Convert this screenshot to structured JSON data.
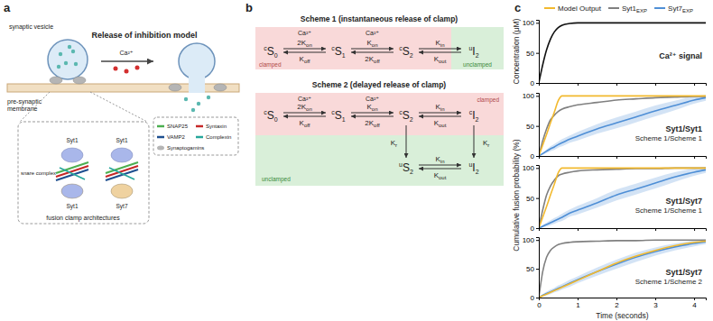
{
  "panel_labels": [
    "a",
    "b",
    "c"
  ],
  "panel_a": {
    "title": "Release of inhibition model",
    "vesicle_label": "synaptic vesicle",
    "membrane_label": [
      "pre-synaptic",
      "membrane"
    ],
    "ion": "Ca²⁺",
    "inset_labels": [
      "Syt1",
      "Syt1",
      "Syt1",
      "Syt7"
    ],
    "snare_label": "snare complex",
    "inset_caption": "fusion clamp architectures",
    "proteins": [
      {
        "label": "SNAP25",
        "color": "#4caf50"
      },
      {
        "label": "Syntaxin",
        "color": "#c62828"
      },
      {
        "label": "VAMP2",
        "color": "#1e4f8f"
      },
      {
        "label": "Complexin",
        "color": "#26a69a"
      },
      {
        "label": "Synaptogamins",
        "color": "#b5b5b5"
      }
    ]
  },
  "panel_b": {
    "schemes": [
      {
        "title": "Scheme 1 (instantaneous release of clamp)",
        "clamped_label": "clamped",
        "unclamped_label": "unclamped",
        "ion": "Ca²⁺",
        "states": [
          {
            "sup": "c",
            "base": "S",
            "sub": "0"
          },
          {
            "sup": "c",
            "base": "S",
            "sub": "1"
          },
          {
            "sup": "c",
            "base": "S",
            "sub": "2"
          },
          {
            "sup": "u",
            "base": "I",
            "sub": "2"
          }
        ],
        "forward_rates": [
          {
            "pre": "2",
            "base": "K",
            "sub": "on"
          },
          {
            "base": "K",
            "sub": "on"
          },
          {
            "base": "K",
            "sub": "in"
          }
        ],
        "backward_rates": [
          {
            "base": "K",
            "sub": "off"
          },
          {
            "pre": "2",
            "base": "K",
            "sub": "off"
          },
          {
            "base": "K",
            "sub": "out"
          }
        ]
      },
      {
        "title": "Scheme 2 (delayed release of clamp)",
        "clamped_label": "clamped",
        "unclamped_label": "unclamped",
        "ion": "Ca²⁺",
        "states": [
          {
            "sup": "c",
            "base": "S",
            "sub": "0"
          },
          {
            "sup": "c",
            "base": "S",
            "sub": "1"
          },
          {
            "sup": "c",
            "base": "S",
            "sub": "2"
          },
          {
            "sup": "c",
            "base": "I",
            "sub": "2"
          }
        ],
        "forward_rates": [
          {
            "pre": "2",
            "base": "K",
            "sub": "on"
          },
          {
            "base": "K",
            "sub": "on"
          },
          {
            "base": "K",
            "sub": "in"
          }
        ],
        "backward_rates": [
          {
            "base": "K",
            "sub": "off"
          },
          {
            "pre": "2",
            "base": "K",
            "sub": "off"
          },
          {
            "base": "K",
            "sub": "out"
          }
        ],
        "unclamped_states": [
          {
            "sup": "u",
            "base": "S",
            "sub": "2"
          },
          {
            "sup": "u",
            "base": "I",
            "sub": "2"
          }
        ],
        "unclamped_forward": [
          {
            "base": "K",
            "sub": "in"
          }
        ],
        "unclamped_backward": [
          {
            "base": "K",
            "sub": "out"
          }
        ],
        "vertical_rates": [
          {
            "base": "K",
            "sub": "r"
          },
          {
            "base": "K",
            "sub": "r"
          }
        ]
      }
    ]
  },
  "chart_data": [
    {
      "type": "line",
      "title": "Ca²⁺ signal",
      "ylabel": "Concentration (μM)",
      "x": [
        0,
        0.1,
        0.2,
        0.3,
        0.4,
        0.5,
        0.6,
        0.8,
        1,
        1.5,
        2,
        2.5,
        3,
        3.5,
        4,
        4.3
      ],
      "series": [
        {
          "color": "#111111",
          "values": [
            0,
            30,
            55,
            73,
            85,
            92,
            96,
            99,
            100,
            100,
            100,
            100,
            100,
            100,
            100,
            100
          ]
        }
      ],
      "xlim": [
        0,
        4.3
      ],
      "xticks": [
        0,
        1,
        2,
        3,
        4
      ],
      "ylim": [
        0,
        105
      ],
      "yticks": [
        0,
        50,
        100
      ],
      "tick_labels": "y"
    },
    {
      "type": "line",
      "title": "Syt1/Syt1",
      "subtitle": "Scheme 1/Scheme 1",
      "legend": "top",
      "x": [
        0,
        0.1,
        0.2,
        0.3,
        0.4,
        0.5,
        0.6,
        0.8,
        1,
        1.5,
        2,
        2.5,
        3,
        3.5,
        4,
        4.3
      ],
      "series": [
        {
          "name": "Model Output",
          "color": "#f2b92e",
          "values": [
            0,
            18,
            36,
            55,
            73,
            92,
            100,
            100,
            100,
            100,
            100,
            100,
            100,
            100,
            100,
            100
          ]
        },
        {
          "name": "Syt1EXP",
          "color": "#808080",
          "values": [
            0,
            25,
            45,
            60,
            68,
            74,
            78,
            82,
            85,
            89,
            93,
            95,
            97,
            98,
            99,
            99
          ]
        },
        {
          "name": "Syt7EXP",
          "color": "#4f8fd6",
          "values": [
            0,
            4,
            8,
            12,
            15,
            19,
            22,
            28,
            33,
            45,
            55,
            65,
            75,
            84,
            93,
            97
          ],
          "error": [
            0,
            2,
            3,
            4,
            5,
            5,
            6,
            6,
            7,
            8,
            9,
            9,
            9,
            8,
            6,
            5
          ]
        }
      ],
      "xlim": [
        0,
        4.3
      ],
      "xticks": [
        0,
        1,
        2,
        3,
        4
      ],
      "ylim": [
        0,
        105
      ],
      "yticks": [
        0,
        50,
        100
      ],
      "tick_labels": "y"
    },
    {
      "type": "line",
      "title": "Syt1/Syt7",
      "subtitle": "Scheme 1/Scheme 1",
      "ylabel": "Cumulative fusion probability (%)",
      "x": [
        0,
        0.1,
        0.2,
        0.3,
        0.4,
        0.5,
        0.6,
        0.8,
        1,
        1.5,
        2,
        2.5,
        3,
        3.5,
        4,
        4.3
      ],
      "series": [
        {
          "name": "Model Output",
          "color": "#f2b92e",
          "values": [
            0,
            18,
            36,
            55,
            73,
            92,
            100,
            100,
            100,
            100,
            100,
            100,
            100,
            100,
            100,
            100
          ]
        },
        {
          "name": "Syt1EXP",
          "color": "#808080",
          "values": [
            0,
            30,
            55,
            70,
            80,
            87,
            90,
            93,
            95,
            97,
            98,
            99,
            99,
            100,
            100,
            100
          ]
        },
        {
          "name": "Syt7EXP",
          "color": "#4f8fd6",
          "values": [
            0,
            3,
            6,
            9,
            12,
            15,
            18,
            25,
            30,
            42,
            55,
            65,
            75,
            85,
            93,
            97
          ],
          "error": [
            0,
            2,
            3,
            4,
            5,
            5,
            6,
            6,
            7,
            8,
            9,
            9,
            9,
            8,
            6,
            5
          ]
        }
      ],
      "xlim": [
        0,
        4.3
      ],
      "xticks": [
        0,
        1,
        2,
        3,
        4
      ],
      "ylim": [
        0,
        105
      ],
      "yticks": [
        0,
        50,
        100
      ],
      "tick_labels": "y"
    },
    {
      "type": "line",
      "title": "Syt1/Syt7",
      "subtitle": "Scheme 1/Scheme 2",
      "xlabel": "Time (seconds)",
      "x": [
        0,
        0.1,
        0.2,
        0.3,
        0.4,
        0.5,
        0.6,
        0.8,
        1,
        1.5,
        2,
        2.5,
        3,
        3.5,
        4,
        4.3
      ],
      "series": [
        {
          "name": "Model Output",
          "color": "#f2b92e",
          "values": [
            0,
            3,
            6,
            9,
            12,
            15,
            18,
            24,
            30,
            45,
            60,
            72,
            82,
            90,
            96,
            98
          ]
        },
        {
          "name": "Syt1EXP",
          "color": "#808080",
          "values": [
            0,
            45,
            70,
            82,
            88,
            92,
            94,
            96,
            97,
            98,
            99,
            99,
            100,
            100,
            100,
            100
          ]
        },
        {
          "name": "Syt7EXP",
          "color": "#4f8fd6",
          "values": [
            0,
            4,
            7,
            10,
            13,
            16,
            19,
            25,
            31,
            45,
            58,
            70,
            80,
            88,
            94,
            97
          ],
          "error": [
            0,
            2,
            3,
            4,
            4,
            5,
            5,
            6,
            6,
            7,
            8,
            8,
            7,
            6,
            5,
            4
          ]
        }
      ],
      "xlim": [
        0,
        4.3
      ],
      "xticks": [
        0,
        1,
        2,
        3,
        4
      ],
      "ylim": [
        0,
        105
      ],
      "yticks": [
        0,
        50,
        100
      ]
    }
  ]
}
